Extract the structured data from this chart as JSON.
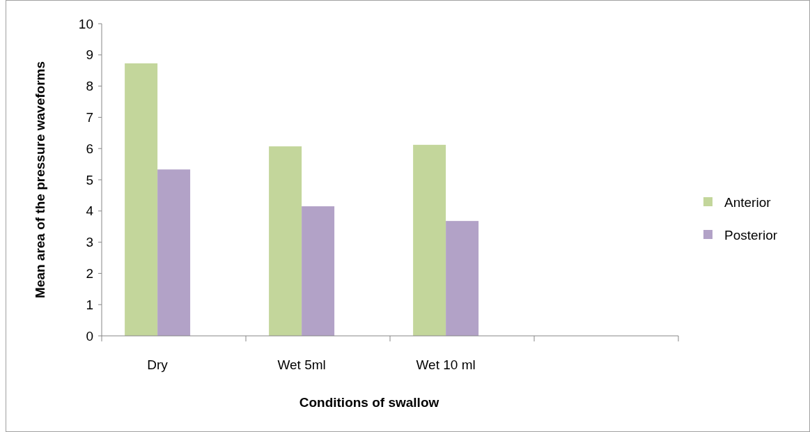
{
  "chart_data": {
    "type": "bar",
    "xlabel": "Conditions of swallow",
    "ylabel": "Mean area of the pressure waveforms",
    "categories": [
      "Dry",
      "Wet 5ml",
      "Wet 10 ml",
      null
    ],
    "series": [
      {
        "name": "Anterior",
        "color": "#c3d69b",
        "values": [
          8.73,
          6.07,
          6.12,
          null
        ]
      },
      {
        "name": "Posterior",
        "color": "#b2a2c7",
        "values": [
          5.33,
          4.15,
          3.68,
          null
        ]
      }
    ],
    "ylim": [
      0,
      10
    ],
    "yticks": [
      0,
      1,
      2,
      3,
      4,
      5,
      6,
      7,
      8,
      9,
      10
    ],
    "grid": false,
    "legend": "right"
  }
}
